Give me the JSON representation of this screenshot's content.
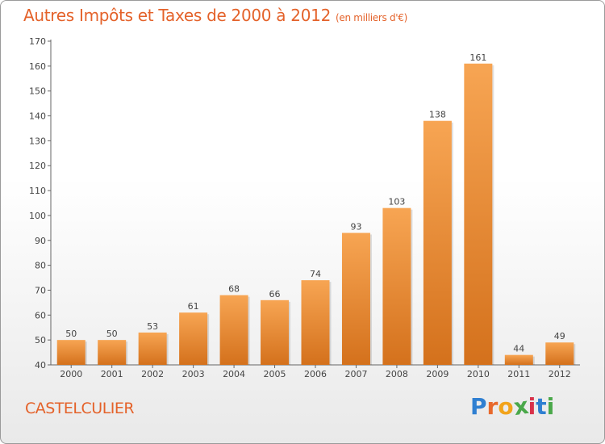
{
  "title": "Autres Impôts et Taxes de 2000 à 2012",
  "subtitle": "(en milliers d'€)",
  "city": "CASTELCULIER",
  "logo": {
    "letters": [
      "P",
      "r",
      "o",
      "x",
      "i",
      "t",
      "i"
    ],
    "colors": [
      "#2f7fd1",
      "#e8692c",
      "#f2a31b",
      "#4aa84a",
      "#d9324a",
      "#2f7fd1",
      "#4aa84a"
    ]
  },
  "colors": {
    "bar_light": "#f7a553",
    "bar_dark": "#d4711c",
    "axis": "#666666",
    "grid": "#d0d0d0",
    "accent": "#e4622a"
  },
  "chart_data": {
    "type": "bar",
    "title": "Autres Impôts et Taxes de 2000 à 2012",
    "subtitle": "(en milliers d'€)",
    "categories": [
      "2000",
      "2001",
      "2002",
      "2003",
      "2004",
      "2005",
      "2006",
      "2007",
      "2008",
      "2009",
      "2010",
      "2011",
      "2012"
    ],
    "values": [
      50,
      50,
      53,
      61,
      68,
      66,
      74,
      93,
      103,
      138,
      161,
      44,
      49
    ],
    "ylim": [
      40,
      170
    ],
    "yticks": [
      40,
      50,
      60,
      70,
      80,
      90,
      100,
      110,
      120,
      130,
      140,
      150,
      160,
      170
    ],
    "grid": false,
    "data_labels": true
  }
}
